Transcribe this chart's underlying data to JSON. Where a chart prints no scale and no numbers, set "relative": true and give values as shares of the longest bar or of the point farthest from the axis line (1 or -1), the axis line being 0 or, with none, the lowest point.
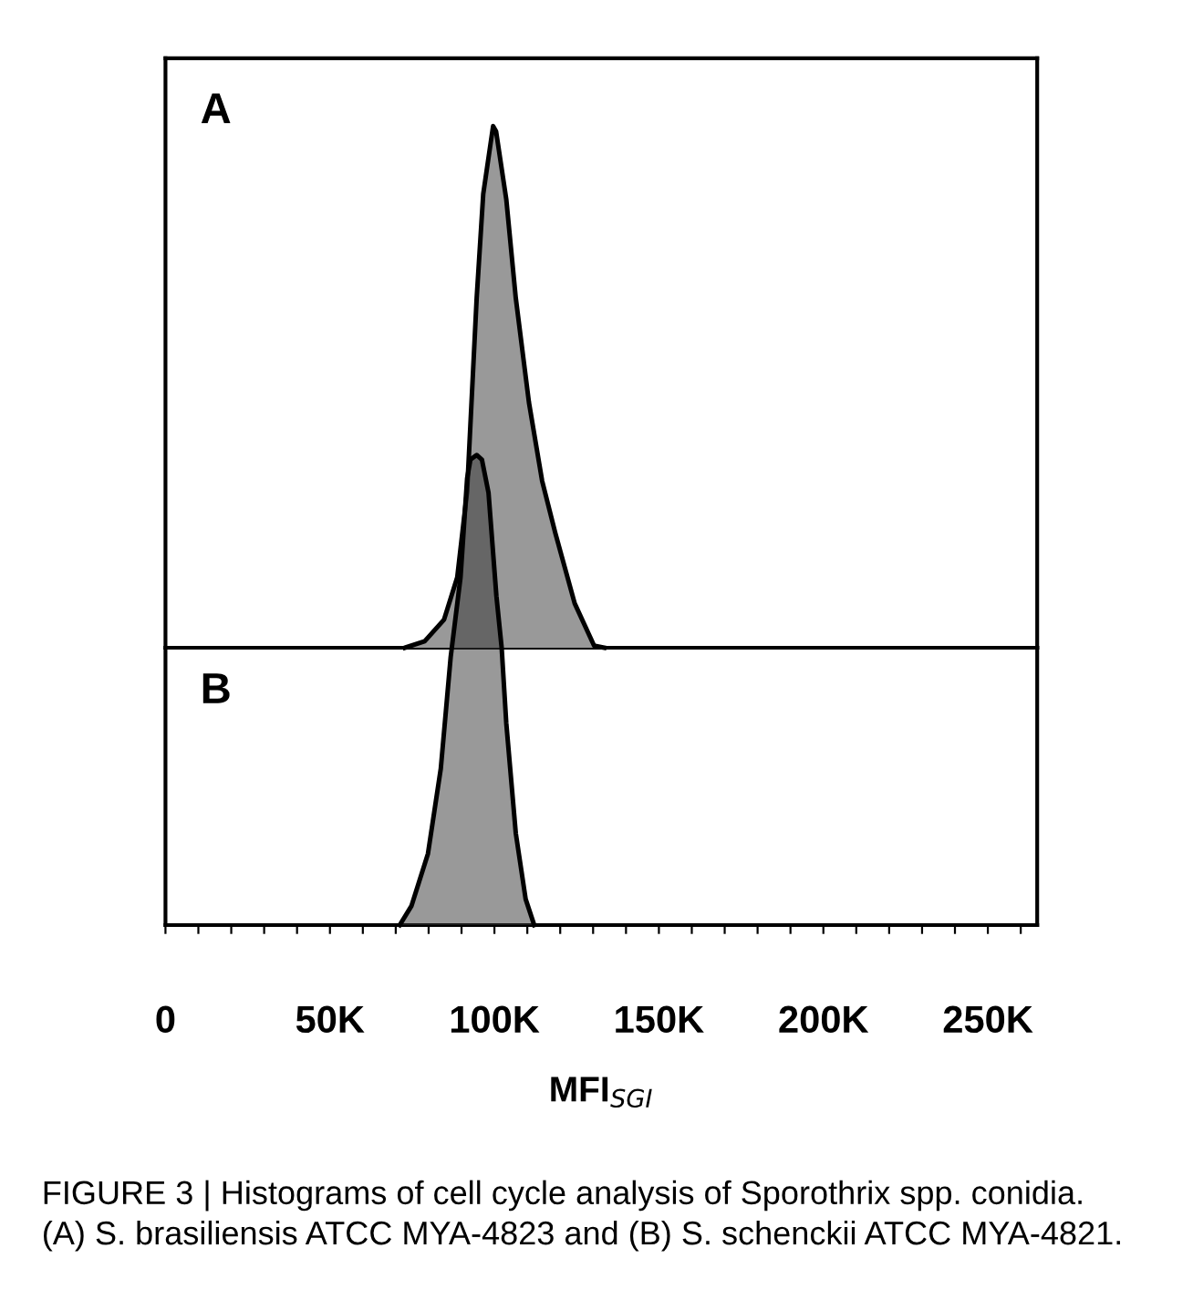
{
  "chart_data": [
    {
      "type": "area",
      "title": "A",
      "relative": true,
      "xlim": [
        0,
        265000
      ],
      "tick_labels": false,
      "series": [
        {
          "color": "#999999",
          "x": [
            72800,
            78800,
            84700,
            88700,
            91700,
            94600,
            96600,
            99600,
            100500,
            103600,
            106500,
            110500,
            114500,
            118500,
            124400,
            130300,
            133400
          ],
          "values": [
            0,
            0.0125,
            0.054,
            0.135,
            0.3,
            0.67,
            0.87,
            1.0,
            0.99,
            0.86,
            0.67,
            0.47,
            0.32,
            0.22,
            0.085,
            0.004,
            0
          ]
        }
      ]
    },
    {
      "type": "area",
      "title": "B",
      "relative": true,
      "xlim": [
        0,
        265000
      ],
      "tick_labels": "x",
      "xlabel": "MFI$_{SGI}$",
      "xticks": [
        0,
        {
          "value": 10000,
          "label": null
        },
        {
          "value": 20000,
          "label": null
        },
        {
          "value": 30000,
          "label": null
        },
        {
          "value": 40000,
          "label": null
        },
        {
          "value": 50000,
          "label": "50K"
        },
        {
          "value": 60000,
          "label": null
        },
        {
          "value": 70000,
          "label": null
        },
        {
          "value": 80000,
          "label": null
        },
        {
          "value": 90000,
          "label": null
        },
        {
          "value": 100000,
          "label": "100K"
        },
        {
          "value": 110000,
          "label": null
        },
        {
          "value": 120000,
          "label": null
        },
        {
          "value": 130000,
          "label": null
        },
        {
          "value": 140000,
          "label": null
        },
        {
          "value": 150000,
          "label": "150K"
        },
        {
          "value": 160000,
          "label": null
        },
        {
          "value": 170000,
          "label": null
        },
        {
          "value": 180000,
          "label": null
        },
        {
          "value": 190000,
          "label": null
        },
        {
          "value": 200000,
          "label": "200K"
        },
        {
          "value": 210000,
          "label": null
        },
        {
          "value": 220000,
          "label": null
        },
        {
          "value": 230000,
          "label": null
        },
        {
          "value": 240000,
          "label": null
        },
        {
          "value": 250000,
          "label": "250K"
        },
        {
          "value": 260000,
          "label": null
        }
      ],
      "series": [
        {
          "color": "#999999",
          "x": [
            71200,
            74800,
            79800,
            83700,
            86700,
            89700,
            91700,
            92700,
            94600,
            96200,
            98200,
            100600,
            102200,
            103600,
            106500,
            109500,
            112100
          ],
          "values": [
            0,
            0.041,
            0.152,
            0.333,
            0.57,
            0.74,
            0.95,
            0.99,
            1.0,
            0.99,
            0.92,
            0.7,
            0.59,
            0.43,
            0.195,
            0.055,
            0
          ]
        }
      ],
      "annotations": [
        "FIGURE 3 | Histograms of cell cycle analysis of Sporothrix spp. conidia.\n(A) S. brasiliensis ATCC MYA-4823 and (B) S. schenckii ATCC MYA-4821."
      ]
    }
  ]
}
